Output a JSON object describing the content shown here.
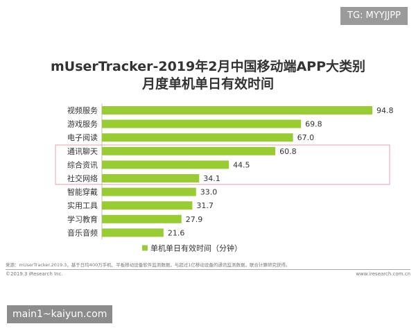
{
  "corner_tag": "TG: MYYJJPP",
  "watermark": "main1~kaiyun.com",
  "footer": {
    "source": "来源：mUserTracker.2019.3，基于日均400万手机、平板移动设备软件监测数据，与超过1亿移动设备的通讯监测数据，联合计算研究获得。",
    "copyright": "©2019.3 iResearch Inc.",
    "site": "www.iresearch.com.cn"
  },
  "colors": {
    "bar": "#99cc33",
    "highlight_box": "#e8a0a8"
  },
  "chart_data": {
    "type": "bar",
    "orientation": "horizontal",
    "title_line1": "mUserTracker-2019年2月中国移动端APP大类别",
    "title_line2": "月度单机单日有效时间",
    "categories": [
      "视频服务",
      "游戏服务",
      "电子阅读",
      "通讯聊天",
      "综合资讯",
      "社交网络",
      "智能穿戴",
      "实用工具",
      "学习教育",
      "音乐音频"
    ],
    "values": [
      94.8,
      69.8,
      67.0,
      60.8,
      44.5,
      34.1,
      33.0,
      31.7,
      27.9,
      21.6
    ],
    "value_labels": [
      "94.8",
      "69.8",
      "67.0",
      "60.8",
      "44.5",
      "34.1",
      "33.0",
      "31.7",
      "27.9",
      "21.6"
    ],
    "legend": "单机单日有效时间（分钟）",
    "xlim": [
      0,
      100
    ],
    "highlighted_categories": [
      "通讯聊天",
      "综合资讯",
      "社交网络"
    ],
    "grid": false
  }
}
